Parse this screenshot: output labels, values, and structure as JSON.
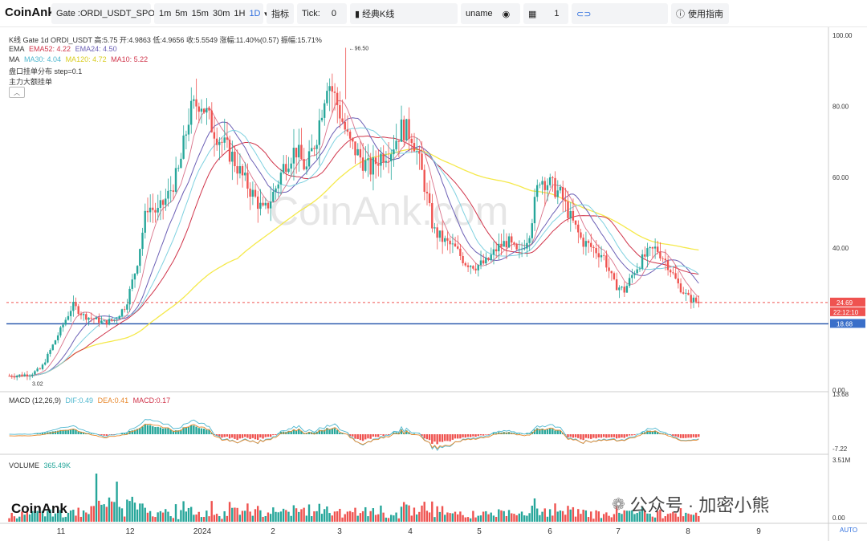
{
  "toolbar": {
    "logo": "CoinAnk",
    "symbol": "Gate :ORDI_USDT_SPOT",
    "intervals": [
      "1m",
      "5m",
      "15m",
      "30m",
      "1H"
    ],
    "selected_interval": "1D",
    "indicators_label": "指标",
    "tick_label": "Tick:",
    "tick_value": "0",
    "kline_label": "经典K线",
    "user_label": "uname",
    "layout_count": "1",
    "guide_label": "使用指南"
  },
  "legend": {
    "line1": "K线  Gate 1d ORDI_USDT 高:5.75  开:4.9863  低:4.9656  收:5.5549  涨幅:11.40%(0.57)  振幅:15.71%",
    "ema_label": "EMA",
    "ema52": "EMA52: 4.22",
    "ema24": "EMA24: 4.50",
    "ma_label": "MA",
    "ma30": "MA30: 4.04",
    "ma120": "MA120: 4.72",
    "ma10": "MA10: 5.22",
    "orderbook": "盘口挂单分布   step=0.1",
    "bigorders": "主力大额挂单",
    "macd": "MACD  (12,26,9)",
    "dif": "DIF:0.49",
    "dea": "DEA:0.41",
    "macd_val": "MACD:0.17",
    "volume": "VOLUME",
    "volume_val": "365.49K"
  },
  "watermark": "CoinAnk.com",
  "bottom_logo": "CoinAnk",
  "wechat": "公众号 · 加密小熊",
  "auto_label": "AUTO",
  "colors": {
    "up": "#26a69a",
    "down": "#ef5350",
    "ma120": "#f5e94a",
    "ema52": "#d0344a",
    "ema24": "#6b5fb5",
    "ma30": "#7fd1e0",
    "blue_line": "#1d4fa8",
    "axis_highlight": "#3a6fc9"
  },
  "chart_data": {
    "type": "candlestick",
    "price_axis_ticks": [
      "100.00",
      "80.00",
      "60.00",
      "40.00",
      "0.00"
    ],
    "ylim": [
      0,
      100
    ],
    "macd_axis_ticks": [
      "13.68",
      "-7.22"
    ],
    "volume_axis_ticks": [
      "3.51M",
      "0.00"
    ],
    "x_ticks": [
      "11",
      "12",
      "2024",
      "2",
      "3",
      "4",
      "5",
      "6",
      "7",
      "8",
      "9"
    ],
    "price_labels": {
      "current": "24.69",
      "countdown": "22:12:10",
      "level_line": "18.68",
      "high_annotation": "96.50",
      "low_annotation": "3.02"
    },
    "ohlc_close_path": [
      4.0,
      4.2,
      4.5,
      6.0,
      12.0,
      18.0,
      24.0,
      21.0,
      20.0,
      19.0,
      20.0,
      24.0,
      35.0,
      52.0,
      50.0,
      55.0,
      62.0,
      78.0,
      82.0,
      75.0,
      70.0,
      66.0,
      60.0,
      55.0,
      50.0,
      56.0,
      64.0,
      68.0,
      62.0,
      72.0,
      88.0,
      80.0,
      70.0,
      66.0,
      62.0,
      66.0,
      68.0,
      74.0,
      72.0,
      60.0,
      45.0,
      42.0,
      40.0,
      36.0,
      35.0,
      36.0,
      40.0,
      42.0,
      38.0,
      44.0,
      60.0,
      58.0,
      55.0,
      48.0,
      42.0,
      40.0,
      38.0,
      30.0,
      28.0,
      34.0,
      38.0,
      40.0,
      36.0,
      30.0,
      26.0,
      24.69
    ]
  }
}
